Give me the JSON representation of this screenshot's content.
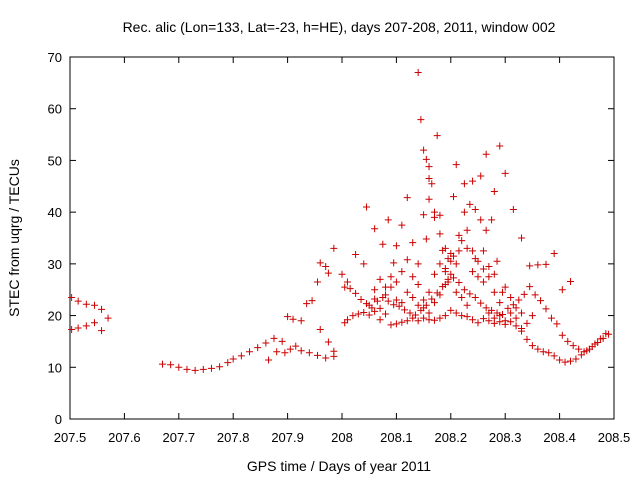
{
  "chart_data": {
    "type": "scatter",
    "title": "Rec. alic (Lon=133, Lat=-23, h=HE), days 207-208, 2011, window 002",
    "xlabel": "GPS time / Days of year 2011",
    "ylabel": "STEC from uqrg / TECUs",
    "xlim": [
      207.5,
      208.5
    ],
    "ylim": [
      0,
      70
    ],
    "xticks": [
      207.5,
      207.6,
      207.7,
      207.8,
      207.9,
      208,
      208.1,
      208.2,
      208.3,
      208.4,
      208.5
    ],
    "xtick_labels": [
      "207.5",
      "207.6",
      "207.7",
      "207.8",
      "207.9",
      "208",
      "208.1",
      "208.2",
      "208.3",
      "208.4",
      "208.5"
    ],
    "yticks": [
      0,
      10,
      20,
      30,
      40,
      50,
      60,
      70
    ],
    "ytick_labels": [
      "0",
      "10",
      "20",
      "30",
      "40",
      "50",
      "60",
      "70"
    ],
    "marker": "+",
    "color": "#cc0000",
    "grid": false,
    "series": [
      {
        "name": "STEC",
        "points": [
          [
            207.503,
            23.5
          ],
          [
            207.515,
            22.8
          ],
          [
            207.53,
            22.2
          ],
          [
            207.545,
            22.0
          ],
          [
            207.558,
            21.2
          ],
          [
            207.503,
            17.3
          ],
          [
            207.515,
            17.6
          ],
          [
            207.53,
            18.0
          ],
          [
            207.545,
            18.6
          ],
          [
            207.558,
            17.1
          ],
          [
            207.57,
            19.5
          ],
          [
            207.67,
            10.6
          ],
          [
            207.685,
            10.5
          ],
          [
            207.7,
            10.0
          ],
          [
            207.715,
            9.6
          ],
          [
            207.73,
            9.4
          ],
          [
            207.745,
            9.6
          ],
          [
            207.76,
            9.8
          ],
          [
            207.775,
            10.1
          ],
          [
            207.79,
            10.9
          ],
          [
            207.8,
            11.6
          ],
          [
            207.815,
            12.2
          ],
          [
            207.83,
            13.0
          ],
          [
            207.845,
            13.8
          ],
          [
            207.86,
            14.7
          ],
          [
            207.865,
            11.4
          ],
          [
            207.875,
            15.6
          ],
          [
            207.88,
            13.0
          ],
          [
            207.89,
            15.0
          ],
          [
            207.895,
            12.8
          ],
          [
            207.905,
            13.5
          ],
          [
            207.915,
            14.1
          ],
          [
            207.9,
            19.8
          ],
          [
            207.91,
            19.3
          ],
          [
            207.925,
            19.0
          ],
          [
            207.935,
            22.3
          ],
          [
            207.945,
            22.9
          ],
          [
            207.955,
            26.5
          ],
          [
            207.96,
            30.2
          ],
          [
            207.97,
            29.5
          ],
          [
            207.975,
            28.2
          ],
          [
            207.985,
            33.0
          ],
          [
            207.925,
            13.2
          ],
          [
            207.94,
            12.8
          ],
          [
            207.955,
            12.3
          ],
          [
            207.96,
            17.3
          ],
          [
            207.97,
            11.8
          ],
          [
            207.975,
            14.9
          ],
          [
            207.985,
            12.1
          ],
          [
            207.985,
            13.1
          ],
          [
            208.005,
            18.6
          ],
          [
            208.01,
            19.2
          ],
          [
            208.02,
            20.0
          ],
          [
            208.03,
            20.3
          ],
          [
            208.04,
            20.6
          ],
          [
            208.05,
            20.1
          ],
          [
            208.06,
            20.8
          ],
          [
            208.07,
            19.2
          ],
          [
            208.08,
            20.3
          ],
          [
            208.09,
            18.2
          ],
          [
            208.1,
            18.4
          ],
          [
            208.11,
            18.7
          ],
          [
            208.12,
            19.0
          ],
          [
            208.13,
            19.5
          ],
          [
            208.14,
            19.0
          ],
          [
            208.15,
            19.5
          ],
          [
            208.16,
            19.2
          ],
          [
            208.17,
            19.1
          ],
          [
            208.18,
            19.5
          ],
          [
            208.19,
            20.0
          ],
          [
            208.2,
            21.0
          ],
          [
            208.21,
            20.5
          ],
          [
            208.22,
            20.0
          ],
          [
            208.23,
            19.8
          ],
          [
            208.24,
            19.2
          ],
          [
            208.25,
            18.6
          ],
          [
            208.26,
            19.4
          ],
          [
            208.27,
            19.0
          ],
          [
            208.28,
            18.5
          ],
          [
            208.29,
            18.8
          ],
          [
            208.3,
            18.3
          ],
          [
            208.31,
            18.8
          ],
          [
            208.32,
            18.0
          ],
          [
            208.33,
            17.0
          ],
          [
            208.34,
            15.4
          ],
          [
            208.35,
            14.2
          ],
          [
            208.36,
            13.5
          ],
          [
            208.37,
            13.0
          ],
          [
            208.38,
            12.8
          ],
          [
            208.39,
            12.2
          ],
          [
            208.4,
            11.4
          ],
          [
            208.41,
            11.0
          ],
          [
            208.42,
            11.2
          ],
          [
            208.43,
            11.6
          ],
          [
            208.44,
            12.4
          ],
          [
            208.45,
            13.2
          ],
          [
            208.46,
            14.0
          ],
          [
            208.47,
            14.8
          ],
          [
            208.48,
            15.6
          ],
          [
            208.49,
            16.4
          ],
          [
            208.005,
            25.5
          ],
          [
            208.015,
            25.2
          ],
          [
            208.025,
            24.3
          ],
          [
            208.035,
            23.1
          ],
          [
            208.045,
            22.3
          ],
          [
            208.055,
            21.5
          ],
          [
            208.065,
            22.8
          ],
          [
            208.075,
            23.5
          ],
          [
            208.085,
            22.8
          ],
          [
            208.095,
            22.1
          ],
          [
            208.105,
            21.8
          ],
          [
            208.115,
            21.1
          ],
          [
            208.125,
            20.5
          ],
          [
            208.135,
            20.1
          ],
          [
            208.145,
            21.0
          ],
          [
            208.155,
            22.0
          ],
          [
            208.165,
            23.2
          ],
          [
            208.175,
            24.4
          ],
          [
            208.185,
            25.6
          ],
          [
            208.195,
            26.5
          ],
          [
            208.205,
            27.3
          ],
          [
            208.215,
            26.4
          ],
          [
            208.225,
            25.0
          ],
          [
            208.235,
            24.2
          ],
          [
            208.245,
            23.5
          ],
          [
            208.255,
            22.4
          ],
          [
            208.265,
            21.5
          ],
          [
            208.275,
            21.0
          ],
          [
            208.285,
            20.5
          ],
          [
            208.295,
            20.2
          ],
          [
            208.305,
            21.4
          ],
          [
            208.315,
            22.1
          ],
          [
            208.325,
            23.0
          ],
          [
            208.335,
            24.1
          ],
          [
            208.345,
            25.6
          ],
          [
            208.355,
            24.0
          ],
          [
            208.365,
            22.9
          ],
          [
            208.375,
            21.3
          ],
          [
            208.385,
            19.5
          ],
          [
            208.395,
            18.4
          ],
          [
            208.405,
            16.2
          ],
          [
            208.415,
            15.0
          ],
          [
            208.425,
            14.2
          ],
          [
            208.435,
            13.5
          ],
          [
            208.445,
            13.0
          ],
          [
            208.455,
            13.5
          ],
          [
            208.465,
            14.5
          ],
          [
            208.475,
            15.5
          ],
          [
            208.485,
            16.5
          ],
          [
            208.0,
            28.0
          ],
          [
            208.01,
            26.5
          ],
          [
            208.025,
            31.8
          ],
          [
            208.04,
            30.0
          ],
          [
            208.045,
            41.0
          ],
          [
            208.06,
            36.8
          ],
          [
            208.075,
            33.8
          ],
          [
            208.085,
            38.5
          ],
          [
            208.095,
            30.2
          ],
          [
            208.1,
            33.5
          ],
          [
            208.11,
            37.5
          ],
          [
            208.12,
            42.8
          ],
          [
            208.13,
            34.1
          ],
          [
            208.14,
            30.0
          ],
          [
            208.155,
            34.8
          ],
          [
            208.16,
            46.5
          ],
          [
            208.17,
            40.0
          ],
          [
            208.18,
            35.8
          ],
          [
            208.19,
            29.1
          ],
          [
            208.205,
            43.0
          ],
          [
            208.21,
            49.2
          ],
          [
            208.225,
            45.5
          ],
          [
            208.24,
            46.0
          ],
          [
            208.255,
            47.0
          ],
          [
            208.265,
            51.2
          ],
          [
            208.28,
            44.0
          ],
          [
            208.29,
            52.8
          ],
          [
            208.3,
            47.5
          ],
          [
            208.315,
            40.5
          ],
          [
            208.33,
            35.0
          ],
          [
            208.345,
            29.6
          ],
          [
            208.36,
            29.8
          ],
          [
            208.375,
            29.9
          ],
          [
            208.39,
            32.0
          ],
          [
            208.405,
            25.0
          ],
          [
            208.42,
            26.6
          ],
          [
            208.14,
            67.0
          ],
          [
            208.145,
            57.9
          ],
          [
            208.15,
            52.0
          ],
          [
            208.155,
            50.2
          ],
          [
            208.16,
            48.8
          ],
          [
            208.165,
            45.5
          ],
          [
            208.175,
            54.8
          ],
          [
            208.16,
            42.5
          ],
          [
            208.15,
            39.5
          ],
          [
            208.17,
            39.0
          ],
          [
            208.18,
            39.4
          ],
          [
            208.185,
            32.6
          ],
          [
            208.19,
            33.0
          ],
          [
            208.195,
            31.0
          ],
          [
            208.06,
            25.0
          ],
          [
            208.07,
            27.0
          ],
          [
            208.08,
            25.5
          ],
          [
            208.09,
            27.5
          ],
          [
            208.1,
            26.5
          ],
          [
            208.11,
            28.5
          ],
          [
            208.12,
            30.8
          ],
          [
            208.13,
            27.5
          ],
          [
            208.14,
            26.0
          ],
          [
            208.15,
            23.0
          ],
          [
            208.16,
            24.5
          ],
          [
            208.17,
            28.0
          ],
          [
            208.18,
            30.0
          ],
          [
            208.19,
            28.5
          ],
          [
            208.2,
            32.0
          ],
          [
            208.21,
            30.0
          ],
          [
            208.22,
            34.5
          ],
          [
            208.23,
            36.5
          ],
          [
            208.24,
            32.5
          ],
          [
            208.25,
            30.5
          ],
          [
            208.26,
            29.0
          ],
          [
            208.27,
            27.5
          ],
          [
            208.28,
            24.5
          ],
          [
            208.29,
            22.5
          ],
          [
            208.3,
            25.5
          ],
          [
            208.31,
            23.5
          ],
          [
            208.32,
            21.5
          ],
          [
            208.33,
            20.5
          ],
          [
            208.34,
            18.5
          ],
          [
            208.35,
            20.0
          ],
          [
            208.05,
            22.0
          ],
          [
            208.06,
            23.2
          ],
          [
            208.07,
            21.4
          ],
          [
            208.08,
            24.0
          ],
          [
            208.09,
            25.5
          ],
          [
            208.1,
            23.0
          ],
          [
            208.11,
            22.5
          ],
          [
            208.12,
            24.5
          ],
          [
            208.13,
            23.5
          ],
          [
            208.14,
            22.0
          ],
          [
            208.15,
            21.5
          ],
          [
            208.16,
            20.5
          ],
          [
            208.17,
            22.5
          ],
          [
            208.18,
            24.0
          ],
          [
            208.19,
            26.0
          ],
          [
            208.2,
            28.0
          ],
          [
            208.21,
            24.5
          ],
          [
            208.22,
            23.5
          ],
          [
            208.23,
            22.0
          ],
          [
            208.24,
            28.5
          ],
          [
            208.25,
            27.5
          ],
          [
            208.26,
            26.5
          ],
          [
            208.27,
            20.5
          ],
          [
            208.28,
            19.5
          ],
          [
            208.29,
            20.0
          ],
          [
            208.3,
            19.0
          ],
          [
            208.31,
            20.5
          ],
          [
            208.32,
            19.5
          ],
          [
            208.33,
            17.5
          ],
          [
            208.2,
            30.5
          ],
          [
            208.215,
            35.5
          ],
          [
            208.225,
            40.0
          ],
          [
            208.235,
            41.5
          ],
          [
            208.245,
            40.5
          ],
          [
            208.255,
            38.5
          ],
          [
            208.265,
            36.5
          ],
          [
            208.275,
            38.5
          ],
          [
            208.285,
            30.5
          ],
          [
            208.295,
            24.5
          ],
          [
            208.195,
            27.0
          ],
          [
            208.205,
            31.5
          ],
          [
            208.215,
            32.5
          ],
          [
            208.23,
            33.0
          ],
          [
            208.245,
            31.0
          ],
          [
            208.26,
            32.5
          ],
          [
            208.27,
            29.5
          ],
          [
            208.28,
            28.0
          ]
        ]
      }
    ]
  }
}
